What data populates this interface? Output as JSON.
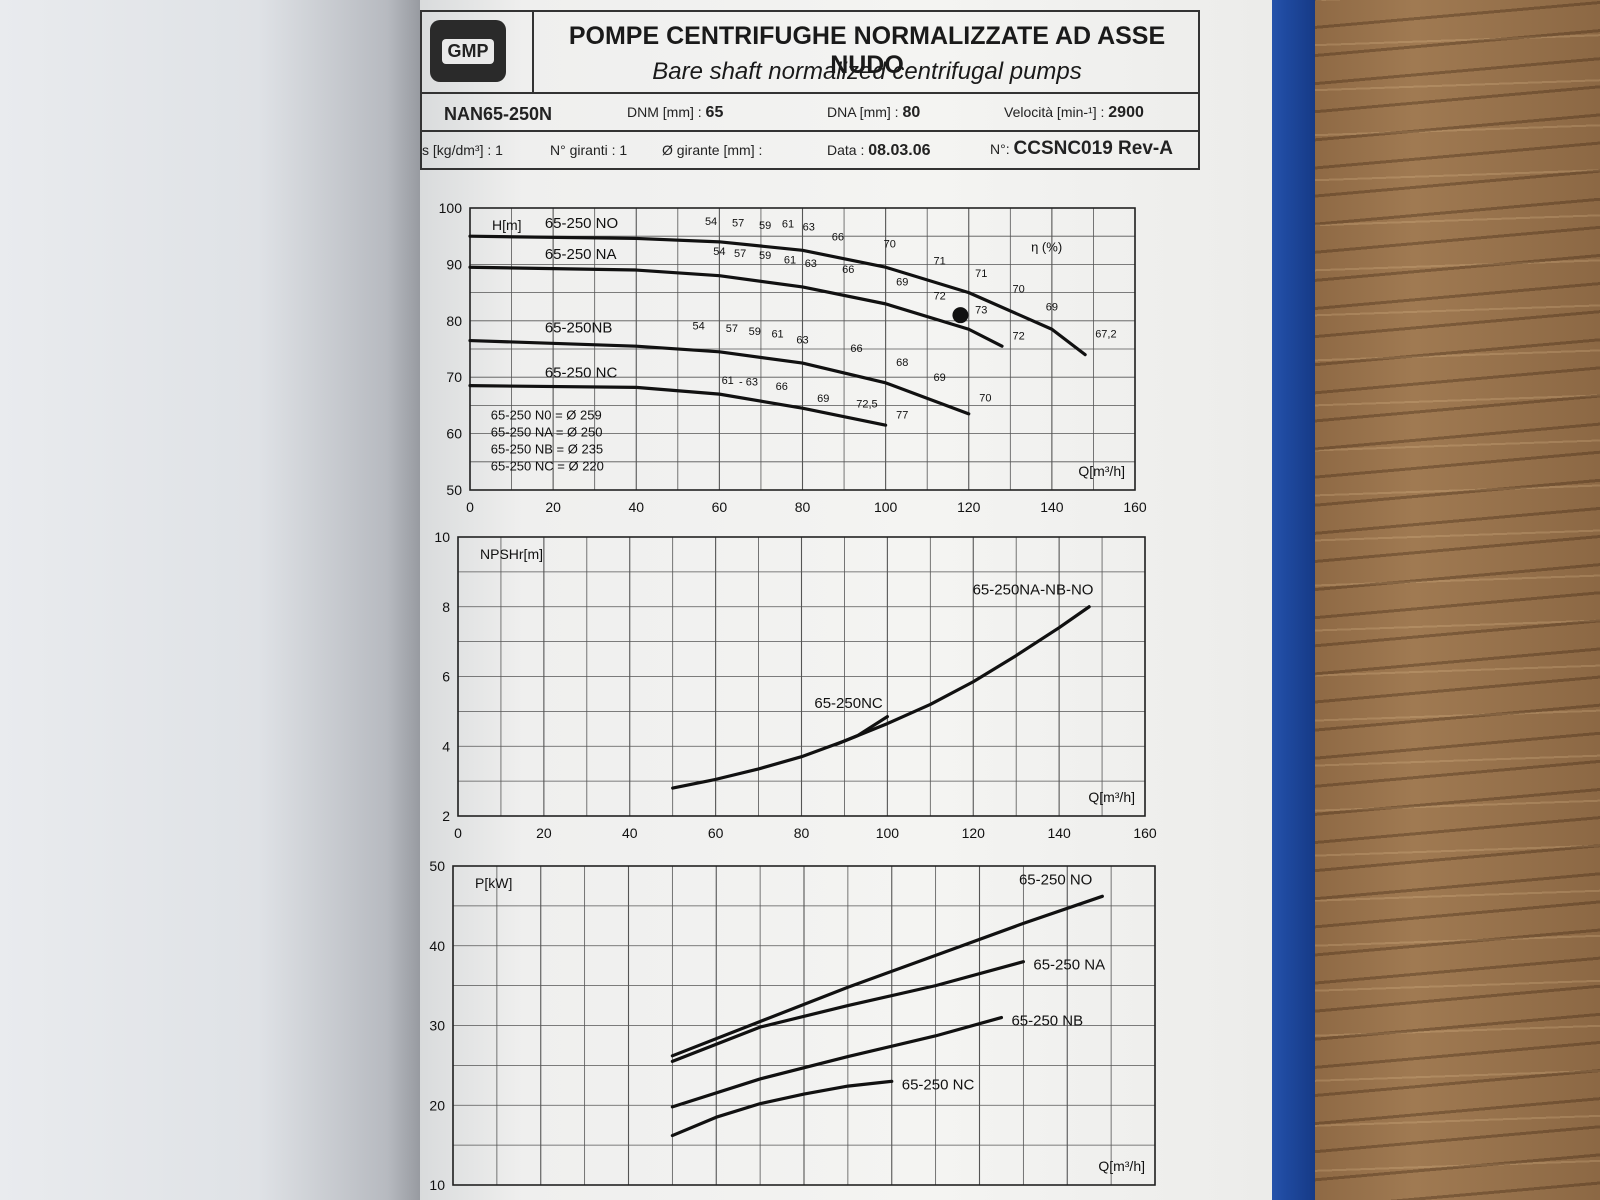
{
  "header": {
    "logo_text": "GMP",
    "title_it": "POMPE CENTRIFUGHE NORMALIZZATE AD ASSE NUDO",
    "title_en": "Bare shaft normalized centrifugal pumps"
  },
  "info": {
    "model": "NAN65-250N",
    "dnm_label": "DNM [mm] :",
    "dnm_value": "65",
    "dna_label": "DNA [mm] :",
    "dna_value": "80",
    "speed_label": "Velocità [min-¹] :",
    "speed_value": "2900",
    "density": "s [kg/dm³] : 1",
    "impellers": "N° giranti : 1",
    "impeller_dia": "Ø girante [mm] :",
    "date_label": "Data :",
    "date_value": "08.03.06",
    "doc_label": "N°:",
    "doc_value": "CCSNC019 Rev-A"
  },
  "chart_data": [
    {
      "type": "line",
      "ylabel": "H[m]",
      "xlabel": "Q[m³/h]",
      "xlim": [
        0,
        160
      ],
      "ylim": [
        50,
        100
      ],
      "xticks": [
        "0",
        "20",
        "40",
        "60",
        "80",
        "100",
        "120",
        "140",
        "160"
      ],
      "yticks": [
        "50",
        "60",
        "70",
        "80",
        "90",
        "100"
      ],
      "eta_label": "η (%)",
      "series": [
        {
          "name": "65-250 NO",
          "x": [
            0,
            40,
            60,
            80,
            100,
            120,
            140,
            148
          ],
          "y": [
            95,
            94.6,
            94,
            92.5,
            89.5,
            85,
            78.5,
            74
          ]
        },
        {
          "name": "65-250 NA",
          "x": [
            0,
            40,
            60,
            80,
            100,
            120,
            128
          ],
          "y": [
            89.5,
            89,
            88,
            86,
            83,
            78.5,
            75.5
          ]
        },
        {
          "name": "65-250NB",
          "x": [
            0,
            40,
            60,
            80,
            100,
            120
          ],
          "y": [
            76.5,
            75.5,
            74.5,
            72.5,
            69,
            63.5
          ]
        },
        {
          "name": "65-250 NC",
          "x": [
            0,
            40,
            60,
            80,
            100
          ],
          "y": [
            68.5,
            68.2,
            67,
            64.5,
            61.5
          ]
        }
      ],
      "efficiency_labels": [
        {
          "x": 58,
          "y": 97,
          "t": "54"
        },
        {
          "x": 64.5,
          "y": 96.7,
          "t": "57"
        },
        {
          "x": 71,
          "y": 96.3,
          "t": "59"
        },
        {
          "x": 76.5,
          "y": 96.5,
          "t": "61"
        },
        {
          "x": 81.5,
          "y": 96,
          "t": "63"
        },
        {
          "x": 88.5,
          "y": 94.2,
          "t": "66"
        },
        {
          "x": 101,
          "y": 93,
          "t": "70"
        },
        {
          "x": 113,
          "y": 90,
          "t": "71"
        },
        {
          "x": 123,
          "y": 87.8,
          "t": "71"
        },
        {
          "x": 132,
          "y": 85,
          "t": "70"
        },
        {
          "x": 140,
          "y": 81.8,
          "t": "69"
        },
        {
          "x": 153,
          "y": 77,
          "t": "67,2"
        },
        {
          "x": 60,
          "y": 91.7,
          "t": "54"
        },
        {
          "x": 65,
          "y": 91.3,
          "t": "57"
        },
        {
          "x": 71,
          "y": 91,
          "t": "59"
        },
        {
          "x": 77,
          "y": 90.2,
          "t": "61"
        },
        {
          "x": 82,
          "y": 89.5,
          "t": "63"
        },
        {
          "x": 91,
          "y": 88.5,
          "t": "66"
        },
        {
          "x": 104,
          "y": 86.3,
          "t": "69"
        },
        {
          "x": 113,
          "y": 83.8,
          "t": "72"
        },
        {
          "x": 123,
          "y": 81.3,
          "t": "73"
        },
        {
          "x": 132,
          "y": 76.7,
          "t": "72"
        },
        {
          "x": 55,
          "y": 78.5,
          "t": "54"
        },
        {
          "x": 63,
          "y": 78,
          "t": "57"
        },
        {
          "x": 68.5,
          "y": 77.5,
          "t": "59"
        },
        {
          "x": 74,
          "y": 77,
          "t": "61"
        },
        {
          "x": 80,
          "y": 76,
          "t": "63"
        },
        {
          "x": 93,
          "y": 74.5,
          "t": "66"
        },
        {
          "x": 104,
          "y": 72,
          "t": "68"
        },
        {
          "x": 113,
          "y": 69.3,
          "t": "69"
        },
        {
          "x": 124,
          "y": 65.7,
          "t": "70"
        },
        {
          "x": 62,
          "y": 68.8,
          "t": "61"
        },
        {
          "x": 67,
          "y": 68.5,
          "t": "- 63"
        },
        {
          "x": 75,
          "y": 67.7,
          "t": "66"
        },
        {
          "x": 85,
          "y": 65.6,
          "t": "69"
        },
        {
          "x": 95.5,
          "y": 64.6,
          "t": "72,5"
        },
        {
          "x": 104,
          "y": 62.7,
          "t": "77"
        }
      ],
      "legend_lines": [
        "65-250 N0 = Ø 259",
        "65-250 NA = Ø 250",
        "65-250 NB = Ø 235",
        "65-250 NC = Ø 220"
      ],
      "grid": true
    },
    {
      "type": "line",
      "ylabel": "NPSHr[m]",
      "xlabel": "Q[m³/h]",
      "xlim": [
        0,
        160
      ],
      "ylim": [
        2,
        10
      ],
      "xticks": [
        "0",
        "20",
        "40",
        "60",
        "80",
        "100",
        "120",
        "140",
        "160"
      ],
      "yticks": [
        "2",
        "4",
        "6",
        "8",
        "10"
      ],
      "series": [
        {
          "name": "65-250NA-NB-NO",
          "x": [
            50,
            60,
            70,
            80,
            90,
            100,
            110,
            120,
            130,
            140,
            147
          ],
          "y": [
            2.8,
            3.05,
            3.35,
            3.7,
            4.15,
            4.65,
            5.2,
            5.85,
            6.6,
            7.4,
            8.0
          ]
        },
        {
          "name": "65-250NC",
          "x": [
            88,
            93,
            100
          ],
          "y": [
            4.05,
            4.3,
            4.85
          ]
        }
      ],
      "grid": true
    },
    {
      "type": "line",
      "ylabel": "P[kW]",
      "xlabel": "Q[m³/h]",
      "xlim": [
        0,
        160
      ],
      "ylim": [
        10,
        50
      ],
      "yticks": [
        "10",
        "20",
        "30",
        "40",
        "50"
      ],
      "series": [
        {
          "name": "65-250 NO",
          "x": [
            50,
            70,
            90,
            110,
            130,
            148
          ],
          "y": [
            26.2,
            30.5,
            34.8,
            38.8,
            42.8,
            46.2
          ]
        },
        {
          "name": "65-250 NA",
          "x": [
            50,
            70,
            90,
            110,
            130
          ],
          "y": [
            25.5,
            29.8,
            32.5,
            35,
            38
          ]
        },
        {
          "name": "65-250 NB",
          "x": [
            50,
            70,
            90,
            110,
            125
          ],
          "y": [
            19.8,
            23.3,
            26.1,
            28.7,
            31
          ]
        },
        {
          "name": "65-250 NC",
          "x": [
            50,
            60,
            70,
            80,
            90,
            100
          ],
          "y": [
            16.2,
            18.5,
            20.2,
            21.4,
            22.4,
            23
          ]
        }
      ],
      "grid": true
    }
  ]
}
